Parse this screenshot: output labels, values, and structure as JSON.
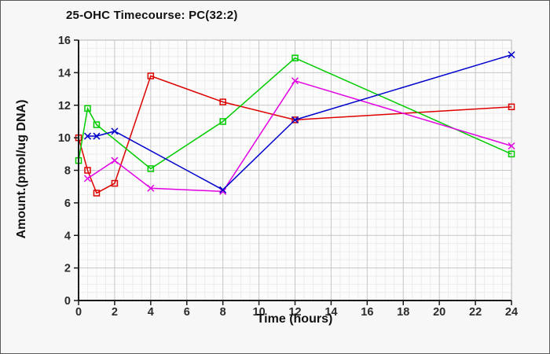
{
  "figure": {
    "title": "25-OHC Timecourse: PC(32:2)",
    "xlabel": "Time (hours)",
    "ylabel": "Amount.(pmol/ug DNA)"
  },
  "chart_data": {
    "type": "line",
    "title": "25-OHC Timecourse: PC(32:2)",
    "xlabel": "Time (hours)",
    "ylabel": "Amount.(pmol/ug DNA)",
    "xlim": [
      0,
      24
    ],
    "ylim": [
      0,
      16
    ],
    "x_ticks": [
      0,
      2,
      4,
      6,
      8,
      10,
      12,
      14,
      16,
      18,
      20,
      22,
      24
    ],
    "y_ticks": [
      0,
      2,
      4,
      6,
      8,
      10,
      12,
      14,
      16
    ],
    "minor_grid_step_x": 0.5,
    "minor_grid_step_y": 0.5,
    "grid": true,
    "legend": "none",
    "series": [
      {
        "name": "red-squares",
        "color": "#dd0000",
        "marker": "square",
        "points": [
          [
            0,
            10.0
          ],
          [
            0.5,
            8.0
          ],
          [
            1,
            6.6
          ],
          [
            2,
            7.2
          ],
          [
            4,
            13.8
          ],
          [
            8,
            12.2
          ],
          [
            12,
            11.1
          ],
          [
            24,
            11.9
          ]
        ]
      },
      {
        "name": "green-squares",
        "color": "#00cc00",
        "marker": "square",
        "points": [
          [
            0,
            8.6
          ],
          [
            0.5,
            11.8
          ],
          [
            1,
            10.8
          ],
          [
            4,
            8.1
          ],
          [
            8,
            11.0
          ],
          [
            12,
            14.9
          ],
          [
            24,
            9.0
          ]
        ]
      },
      {
        "name": "magenta-x",
        "color": "#e100e1",
        "marker": "x",
        "points": [
          [
            0.5,
            7.5
          ],
          [
            2,
            8.6
          ],
          [
            4,
            6.9
          ],
          [
            8,
            6.7
          ],
          [
            12,
            13.5
          ],
          [
            24,
            9.5
          ]
        ]
      },
      {
        "name": "blue-x",
        "color": "#0000cc",
        "marker": "x",
        "points": [
          [
            0.5,
            10.1
          ],
          [
            1,
            10.1
          ],
          [
            2,
            10.4
          ],
          [
            8,
            6.8
          ],
          [
            12,
            11.1
          ],
          [
            24,
            15.1
          ]
        ]
      }
    ],
    "style": {
      "plot_bg": "#fcfcfc",
      "minor_grid_color": "#ececec",
      "major_grid_color": "#c6c6c6",
      "axis_color": "#1a1a1a",
      "frame_color": "#b4b4b4",
      "tick_label_color": "#2b2b2b"
    }
  }
}
